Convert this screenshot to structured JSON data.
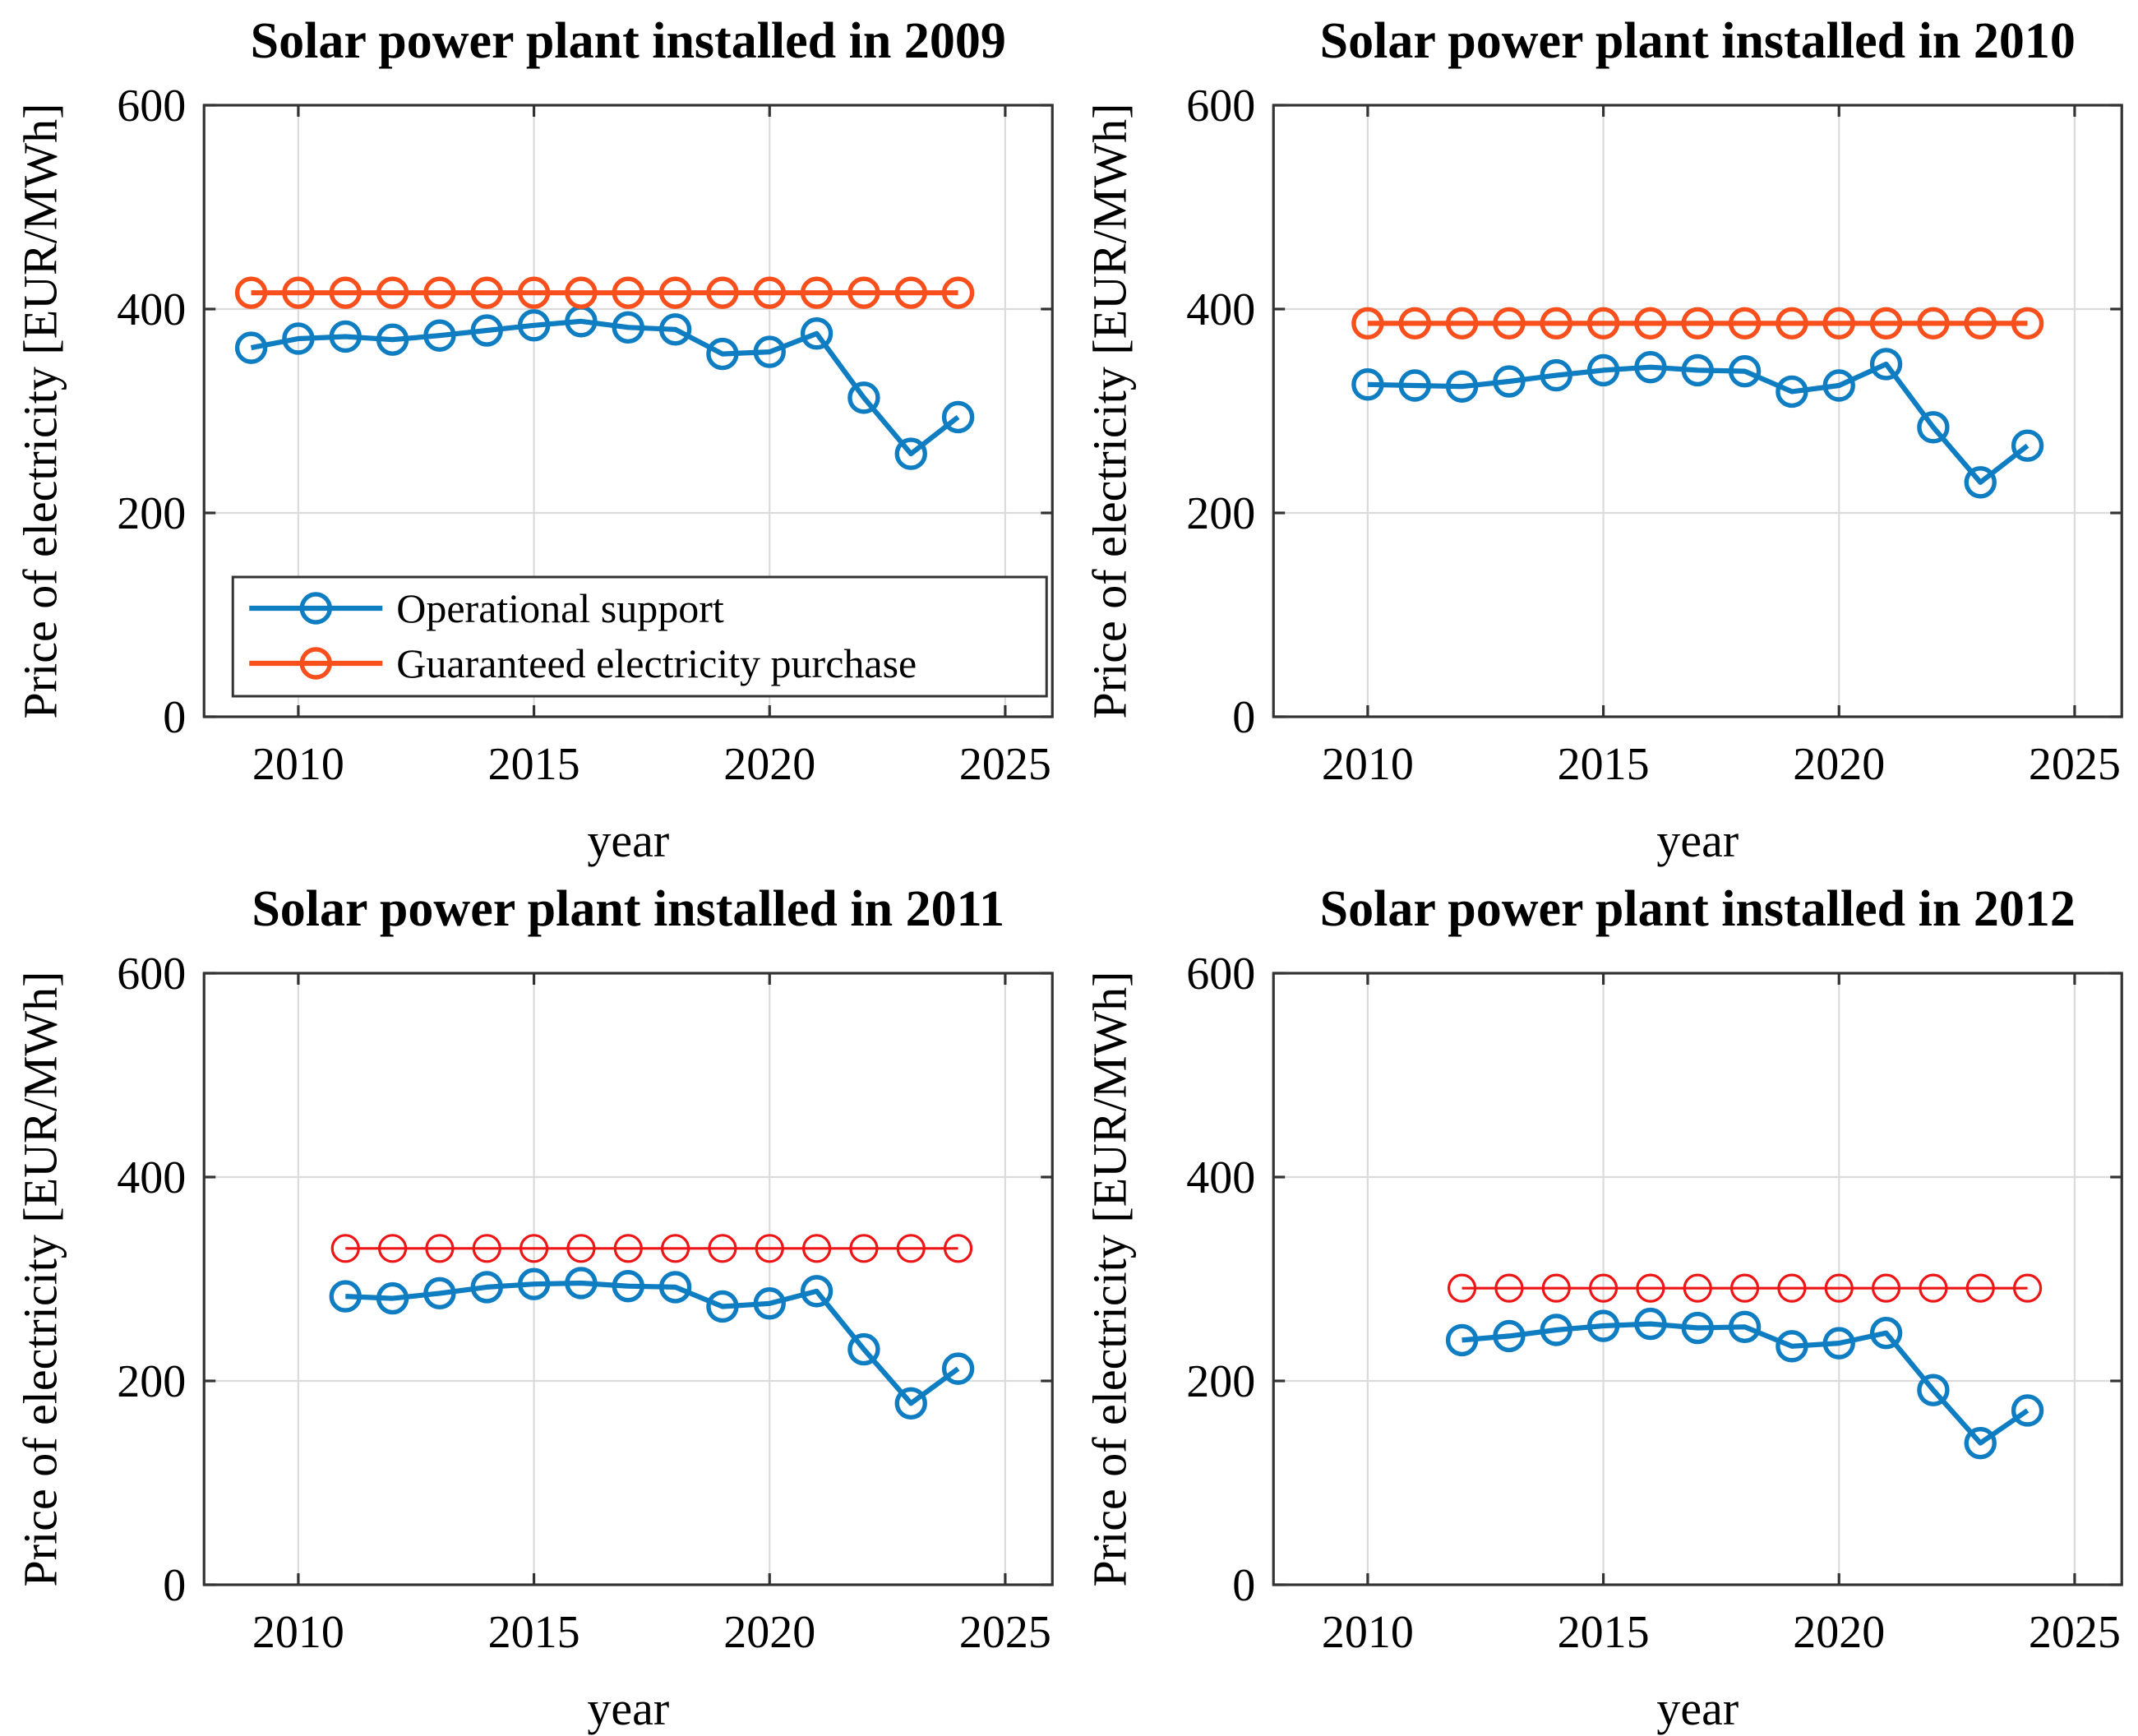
{
  "figure": {
    "background": "#ffffff",
    "rows": 2,
    "cols": 2
  },
  "shared_axes": {
    "xlabel": "year",
    "ylabel": "Price of electricity [EUR/MWh]",
    "xlim": [
      2008,
      2026
    ],
    "ylim": [
      0,
      600
    ],
    "xticks": [
      2010,
      2015,
      2020,
      2025
    ],
    "yticks": [
      0,
      200,
      400,
      600
    ],
    "grid": true,
    "legend_position": "lower-left-of-first-chart"
  },
  "legend": {
    "items": [
      {
        "label": "Operational support",
        "series": "operational"
      },
      {
        "label": "Guaranteed electricity purchase",
        "series": "guaranteed"
      }
    ]
  },
  "colors": {
    "operational": "#0F7DC2",
    "guaranteed_thick": "#F84F1C",
    "guaranteed_thin": "#ED1515",
    "grid": "#DBDBDB",
    "axis": "#333333",
    "text": "#000000"
  },
  "chart_data": [
    {
      "type": "line",
      "title": "Solar power plant installed in 2009",
      "x": [
        2009,
        2010,
        2011,
        2012,
        2013,
        2014,
        2015,
        2016,
        2017,
        2018,
        2019,
        2020,
        2021,
        2022,
        2023,
        2024
      ],
      "series": [
        {
          "name": "Operational support",
          "key": "operational",
          "style": "thick",
          "values": [
            362,
            371,
            373,
            370,
            374,
            379,
            384,
            388,
            382,
            380,
            356,
            358,
            376,
            313,
            258,
            294
          ]
        },
        {
          "name": "Guaranteed electricity purchase",
          "key": "guaranteed",
          "style": "thick",
          "values": [
            416,
            416,
            416,
            416,
            416,
            416,
            416,
            416,
            416,
            416,
            416,
            416,
            416,
            416,
            416,
            416
          ]
        }
      ],
      "show_legend": true
    },
    {
      "type": "line",
      "title": "Solar power plant installed in 2010",
      "x": [
        2010,
        2011,
        2012,
        2013,
        2014,
        2015,
        2016,
        2017,
        2018,
        2019,
        2020,
        2021,
        2022,
        2023,
        2024
      ],
      "series": [
        {
          "name": "Operational support",
          "key": "operational",
          "style": "thick",
          "values": [
            326,
            325,
            324,
            329,
            335,
            340,
            343,
            340,
            339,
            319,
            325,
            346,
            284,
            230,
            266
          ]
        },
        {
          "name": "Guaranteed electricity purchase",
          "key": "guaranteed",
          "style": "thick",
          "values": [
            386,
            386,
            386,
            386,
            386,
            386,
            386,
            386,
            386,
            386,
            386,
            386,
            386,
            386,
            386
          ]
        }
      ],
      "show_legend": false
    },
    {
      "type": "line",
      "title": "Solar power plant installed in 2011",
      "x": [
        2011,
        2012,
        2013,
        2014,
        2015,
        2016,
        2017,
        2018,
        2019,
        2020,
        2021,
        2022,
        2023,
        2024
      ],
      "series": [
        {
          "name": "Operational support",
          "key": "operational",
          "style": "thick",
          "values": [
            283,
            281,
            286,
            292,
            295,
            296,
            293,
            292,
            273,
            276,
            288,
            231,
            178,
            212
          ]
        },
        {
          "name": "Guaranteed electricity purchase",
          "key": "guaranteed",
          "style": "thin",
          "values": [
            330,
            330,
            330,
            330,
            330,
            330,
            330,
            330,
            330,
            330,
            330,
            330,
            330,
            330
          ]
        }
      ],
      "show_legend": false
    },
    {
      "type": "line",
      "title": "Solar power plant installed in 2012",
      "x": [
        2012,
        2013,
        2014,
        2015,
        2016,
        2017,
        2018,
        2019,
        2020,
        2021,
        2022,
        2023,
        2024
      ],
      "series": [
        {
          "name": "Operational support",
          "key": "operational",
          "style": "thick",
          "values": [
            240,
            244,
            250,
            254,
            256,
            252,
            253,
            234,
            237,
            247,
            191,
            139,
            171
          ]
        },
        {
          "name": "Guaranteed electricity purchase",
          "key": "guaranteed",
          "style": "thin",
          "values": [
            291,
            291,
            291,
            291,
            291,
            291,
            291,
            291,
            291,
            291,
            291,
            291,
            291
          ]
        }
      ],
      "show_legend": false
    }
  ]
}
